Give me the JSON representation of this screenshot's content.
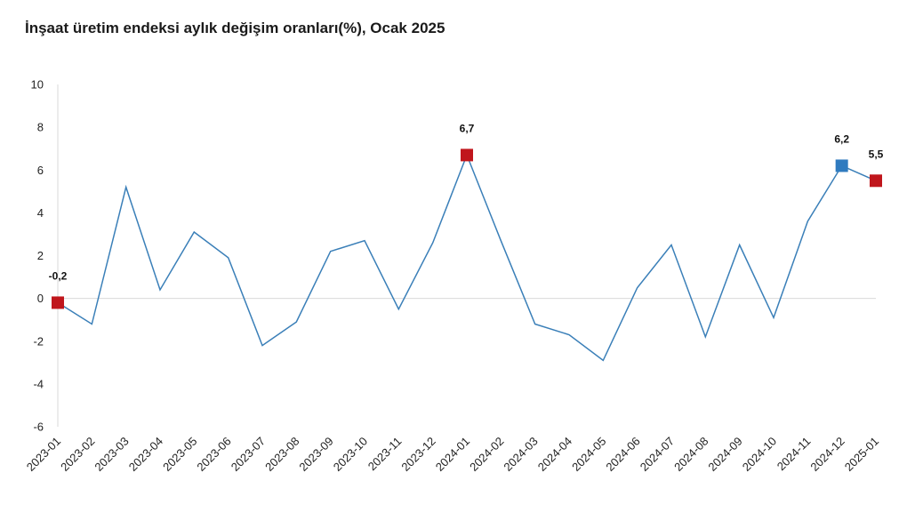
{
  "chart_data": {
    "type": "line",
    "title": "İnşaat üretim endeksi aylık değişim oranları(%), Ocak 2025",
    "xlabel": "",
    "ylabel": "",
    "ylim": [
      -6,
      10
    ],
    "yticks": [
      "10",
      "8",
      "6",
      "4",
      "2",
      "0",
      "-2",
      "-4",
      "-6"
    ],
    "grid": false,
    "categories": [
      "2023-01",
      "2023-02",
      "2023-03",
      "2023-04",
      "2023-05",
      "2023-06",
      "2023-07",
      "2023-08",
      "2023-09",
      "2023-10",
      "2023-11",
      "2023-12",
      "2024-01",
      "2024-02",
      "2024-03",
      "2024-04",
      "2024-05",
      "2024-06",
      "2024-07",
      "2024-08",
      "2024-09",
      "2024-10",
      "2024-11",
      "2024-12",
      "2025-01"
    ],
    "values": [
      -0.2,
      -1.2,
      5.2,
      0.4,
      3.1,
      1.9,
      -2.2,
      -1.1,
      2.2,
      2.7,
      -0.5,
      2.6,
      6.7,
      2.7,
      -1.2,
      -1.7,
      -2.9,
      0.5,
      2.5,
      -1.8,
      2.5,
      -0.9,
      3.6,
      6.2,
      5.5
    ],
    "highlights": [
      {
        "index": 0,
        "label": "-0,2",
        "color": "#c0161c"
      },
      {
        "index": 12,
        "label": "6,7",
        "color": "#c0161c"
      },
      {
        "index": 23,
        "label": "6,2",
        "color": "#2f7bbf"
      },
      {
        "index": 24,
        "label": "5,5",
        "color": "#c0161c"
      }
    ],
    "line_color": "#3a7fb8"
  }
}
